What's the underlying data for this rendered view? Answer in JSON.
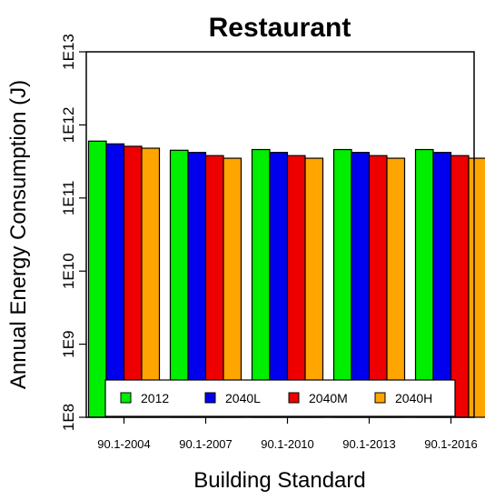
{
  "chart_data": {
    "type": "bar",
    "title": "Restaurant",
    "xlabel": "Building Standard",
    "ylabel": "Annual Energy Consumption (J)",
    "yscale": "log",
    "ylim": [
      100000000.0,
      10000000000000.0
    ],
    "yticks": [
      {
        "value": 100000000.0,
        "label": "1E8"
      },
      {
        "value": 1000000000.0,
        "label": "1E9"
      },
      {
        "value": 10000000000.0,
        "label": "1E10"
      },
      {
        "value": 100000000000.0,
        "label": "1E11"
      },
      {
        "value": 1000000000000.0,
        "label": "1E12"
      },
      {
        "value": 10000000000000.0,
        "label": "1E13"
      }
    ],
    "categories": [
      "90.1-2004",
      "90.1-2007",
      "90.1-2010",
      "90.1-2013",
      "90.1-2016"
    ],
    "series": [
      {
        "name": "2012",
        "color": "#00ee00",
        "values": [
          600000000000.0,
          450000000000.0,
          460000000000.0,
          460000000000.0,
          460000000000.0
        ]
      },
      {
        "name": "2040L",
        "color": "#0000ee",
        "values": [
          550000000000.0,
          420000000000.0,
          420000000000.0,
          420000000000.0,
          420000000000.0
        ]
      },
      {
        "name": "2040M",
        "color": "#ee0000",
        "values": [
          510000000000.0,
          380000000000.0,
          380000000000.0,
          380000000000.0,
          380000000000.0
        ]
      },
      {
        "name": "2040H",
        "color": "#ffa500",
        "values": [
          480000000000.0,
          350000000000.0,
          350000000000.0,
          350000000000.0,
          350000000000.0
        ]
      }
    ],
    "legend": {
      "placement": "bottom",
      "orientation": "horizontal"
    },
    "grid": false
  }
}
